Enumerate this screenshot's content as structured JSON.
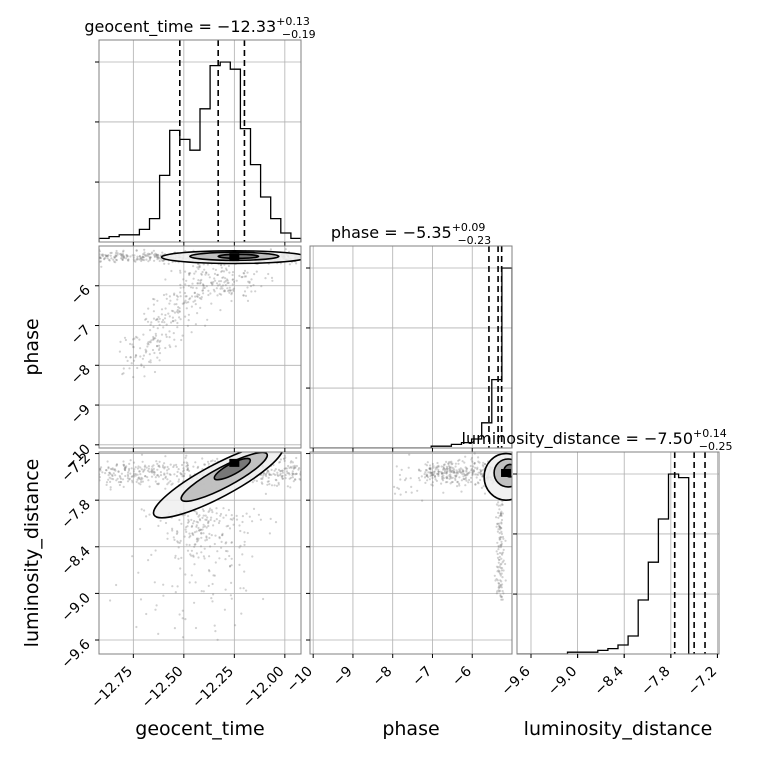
{
  "chart_data": {
    "type": "corner",
    "parameters": [
      {
        "name": "geocent_time",
        "xlabel": "geocent_time",
        "median_text": "−12.33",
        "plus_text": "+0.13",
        "minus_text": "−0.19",
        "median": -12.33,
        "quantiles": [
          -12.52,
          -12.33,
          -12.2
        ],
        "range": [
          -12.92,
          -11.92
        ],
        "ticks": [
          -12.75,
          -12.5,
          -12.25,
          -12.0
        ],
        "tick_labels": [
          "−12.75",
          "−12.50",
          "−12.25",
          "−12.00"
        ],
        "hist": {
          "edges_start": -12.92,
          "bin_width": 0.05,
          "counts": [
            0.02,
            0.03,
            0.04,
            0.04,
            0.07,
            0.13,
            0.37,
            0.62,
            0.57,
            0.51,
            0.74,
            0.98,
            1.0,
            0.96,
            0.63,
            0.43,
            0.25,
            0.13,
            0.05,
            0.02
          ]
        }
      },
      {
        "name": "phase",
        "xlabel": "phase",
        "ylabel": "phase",
        "median_text": "−5.35",
        "plus_text": "+0.09",
        "minus_text": "−0.23",
        "median": -5.35,
        "quantiles": [
          -5.58,
          -5.35,
          -5.26
        ],
        "range": [
          -10.08,
          -5.0
        ],
        "ticks": [
          -10,
          -9,
          -8,
          -7,
          -6
        ],
        "tick_labels": [
          "−10",
          "−9",
          "−8",
          "−7",
          "−6"
        ],
        "hist": {
          "edges_start": -10.08,
          "bin_width": 0.254,
          "counts": [
            0,
            0,
            0,
            0,
            0,
            0,
            0,
            0,
            0,
            0,
            0,
            0,
            0.01,
            0.01,
            0.02,
            0.03,
            0.05,
            0.14,
            0.38,
            1.0
          ]
        }
      },
      {
        "name": "luminosity_distance",
        "xlabel": "luminosity_distance",
        "ylabel": "luminosity_distance",
        "median_text": "−7.50",
        "plus_text": "+0.14",
        "minus_text": "−0.25",
        "median": -7.5,
        "quantiles": [
          -7.75,
          -7.5,
          -7.36
        ],
        "range": [
          -9.78,
          -7.18
        ],
        "ticks": [
          -9.6,
          -9.0,
          -8.4,
          -7.8,
          -7.2
        ],
        "tick_labels": [
          "−9.6",
          "−9.0",
          "−8.4",
          "−7.8",
          "−7.2"
        ],
        "hist": {
          "edges_start": -9.78,
          "bin_width": 0.13,
          "counts": [
            0,
            0,
            0,
            0,
            0,
            0.01,
            0.01,
            0.01,
            0.02,
            0.03,
            0.05,
            0.1,
            0.3,
            0.51,
            0.75,
            1.0,
            0.98,
            0.0,
            0.0,
            0.0
          ]
        }
      }
    ],
    "contours": [
      {
        "x_param": "geocent_time",
        "y_param": "phase",
        "peak": [
          -12.25,
          -5.28
        ],
        "levels": [
          {
            "cx": -12.25,
            "cy": -5.28,
            "rx": 0.36,
            "ry": 0.16,
            "rot": 0
          },
          {
            "cx": -12.25,
            "cy": -5.26,
            "rx": 0.22,
            "ry": 0.1,
            "rot": 0
          },
          {
            "cx": -12.23,
            "cy": -5.26,
            "rx": 0.1,
            "ry": 0.05,
            "rot": 0
          }
        ]
      },
      {
        "x_param": "geocent_time",
        "y_param": "luminosity_distance",
        "peak": [
          -12.25,
          -7.32
        ],
        "levels": [
          {
            "cx": -12.33,
            "cy": -7.55,
            "rx": 0.36,
            "ry": 0.21,
            "rot": -28
          },
          {
            "cx": -12.3,
            "cy": -7.5,
            "rx": 0.24,
            "ry": 0.13,
            "rot": -28
          },
          {
            "cx": -12.26,
            "cy": -7.4,
            "rx": 0.1,
            "ry": 0.07,
            "rot": -28
          }
        ]
      },
      {
        "x_param": "phase",
        "y_param": "luminosity_distance",
        "peak": [
          -5.15,
          -7.45
        ],
        "levels": [
          {
            "cx": -5.15,
            "cy": -7.5,
            "rx": 0.55,
            "ry": 0.3,
            "rot": 0
          },
          {
            "cx": -5.1,
            "cy": -7.45,
            "rx": 0.35,
            "ry": 0.18,
            "rot": 0
          },
          {
            "cx": -5.05,
            "cy": -7.42,
            "rx": 0.15,
            "ry": 0.08,
            "rot": 0
          }
        ]
      }
    ],
    "quantile_line_style": "dashed",
    "grid": true,
    "colors": {
      "line": "#000000",
      "grid": "#b0b0b0",
      "spine": "#808080",
      "points": "#7a7a7a"
    }
  }
}
